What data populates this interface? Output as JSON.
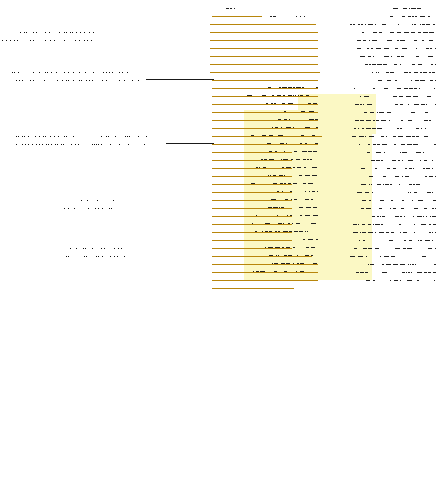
{
  "document": {
    "kind": "annotated text page, scanned at very low resolution",
    "legible_text": "",
    "palette": {
      "paper": "#ffffff",
      "ink": "#111111",
      "underline": "#b8860b",
      "highlight": "#fbf8c4"
    }
  }
}
